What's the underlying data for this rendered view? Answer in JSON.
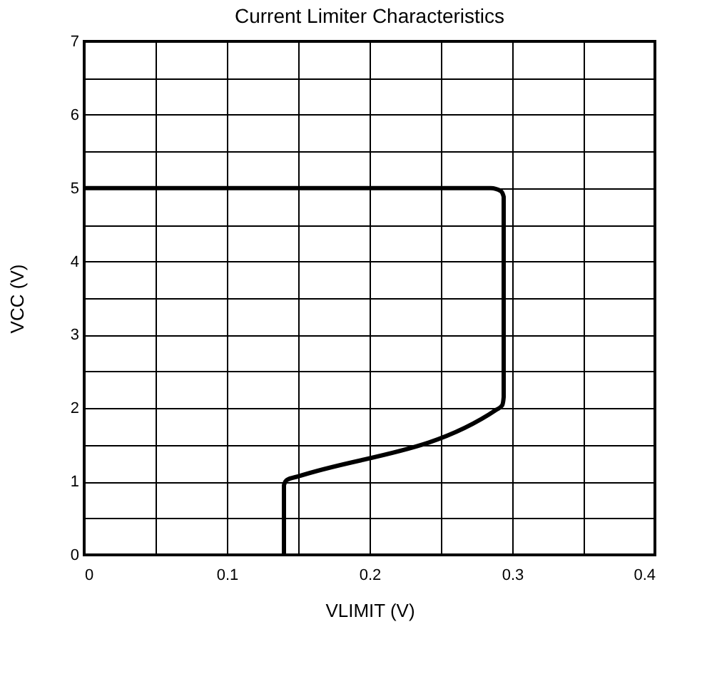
{
  "chart_data": {
    "type": "line",
    "title": "Current Limiter Characteristics",
    "xlabel": "VLIMIT   (V)",
    "ylabel": "VCC   (V)",
    "xlim": [
      0,
      0.4
    ],
    "ylim": [
      0,
      7
    ],
    "xticks": [
      0,
      {
        "value": 0.05,
        "label": null
      },
      0.1,
      {
        "value": 0.15,
        "label": null
      },
      0.2,
      {
        "value": 0.25,
        "label": null
      },
      0.3,
      {
        "value": 0.35,
        "label": null
      },
      0.4
    ],
    "yticks": [
      0,
      {
        "value": 0.5,
        "label": null
      },
      1,
      {
        "value": 1.5,
        "label": null
      },
      2,
      {
        "value": 2.5,
        "label": null
      },
      3,
      {
        "value": 3.5,
        "label": null
      },
      4,
      {
        "value": 4.5,
        "label": null
      },
      5,
      {
        "value": 5.5,
        "label": null
      },
      6,
      {
        "value": 6.5,
        "label": null
      },
      7
    ],
    "grid": true,
    "series": [
      {
        "color": "#000000",
        "x": [
          0.14,
          0.14,
          0.142,
          0.15,
          0.289,
          0.293,
          0.294,
          0.294,
          0.292,
          0.285,
          0.0
        ],
        "values": [
          0.0,
          0.95,
          1.02,
          1.07,
          1.98,
          2.04,
          2.15,
          4.88,
          4.96,
          5.0,
          5.0
        ]
      }
    ]
  }
}
